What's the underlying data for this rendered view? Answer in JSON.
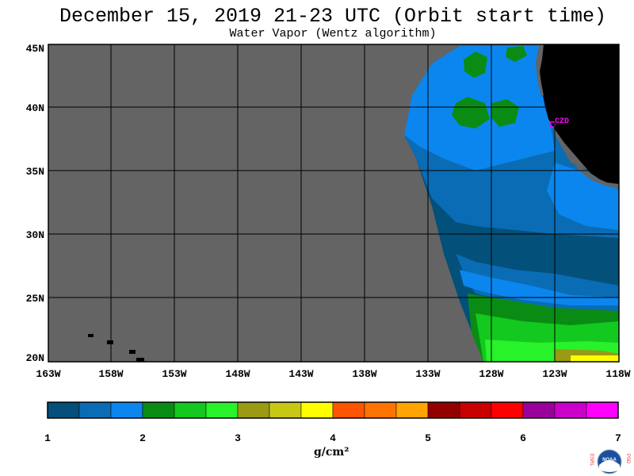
{
  "title": "December 15, 2019  21-23 UTC  (Orbit start time)",
  "subtitle": "Water Vapor (Wentz algorithm)",
  "lat_labels": [
    "45N",
    "40N",
    "35N",
    "30N",
    "25N",
    "20N"
  ],
  "lon_labels": [
    "163W",
    "158W",
    "153W",
    "148W",
    "143W",
    "138W",
    "133W",
    "128W",
    "123W",
    "118W"
  ],
  "station_label": "CZD",
  "colorbar": {
    "ticks": [
      "1",
      "2",
      "3",
      "4",
      "5",
      "6",
      "7"
    ],
    "colors": [
      "#03507a",
      "#0a6cb4",
      "#0b86ee",
      "#0a8c14",
      "#13c81e",
      "#27f22a",
      "#9a9a13",
      "#c8c814",
      "#fffe00",
      "#ff5400",
      "#ff7300",
      "#ffa400",
      "#940000",
      "#c80000",
      "#ff0000",
      "#9a009a",
      "#cb00cb",
      "#ff00ff"
    ],
    "units": "g/cm²"
  },
  "colors": {
    "no_data": "#646464",
    "land": "#000000",
    "grid": "#000000",
    "station": "#ff00ff"
  },
  "logo": {
    "left_text": "ESRL",
    "right_text": "PSD",
    "center": "NOAA"
  }
}
